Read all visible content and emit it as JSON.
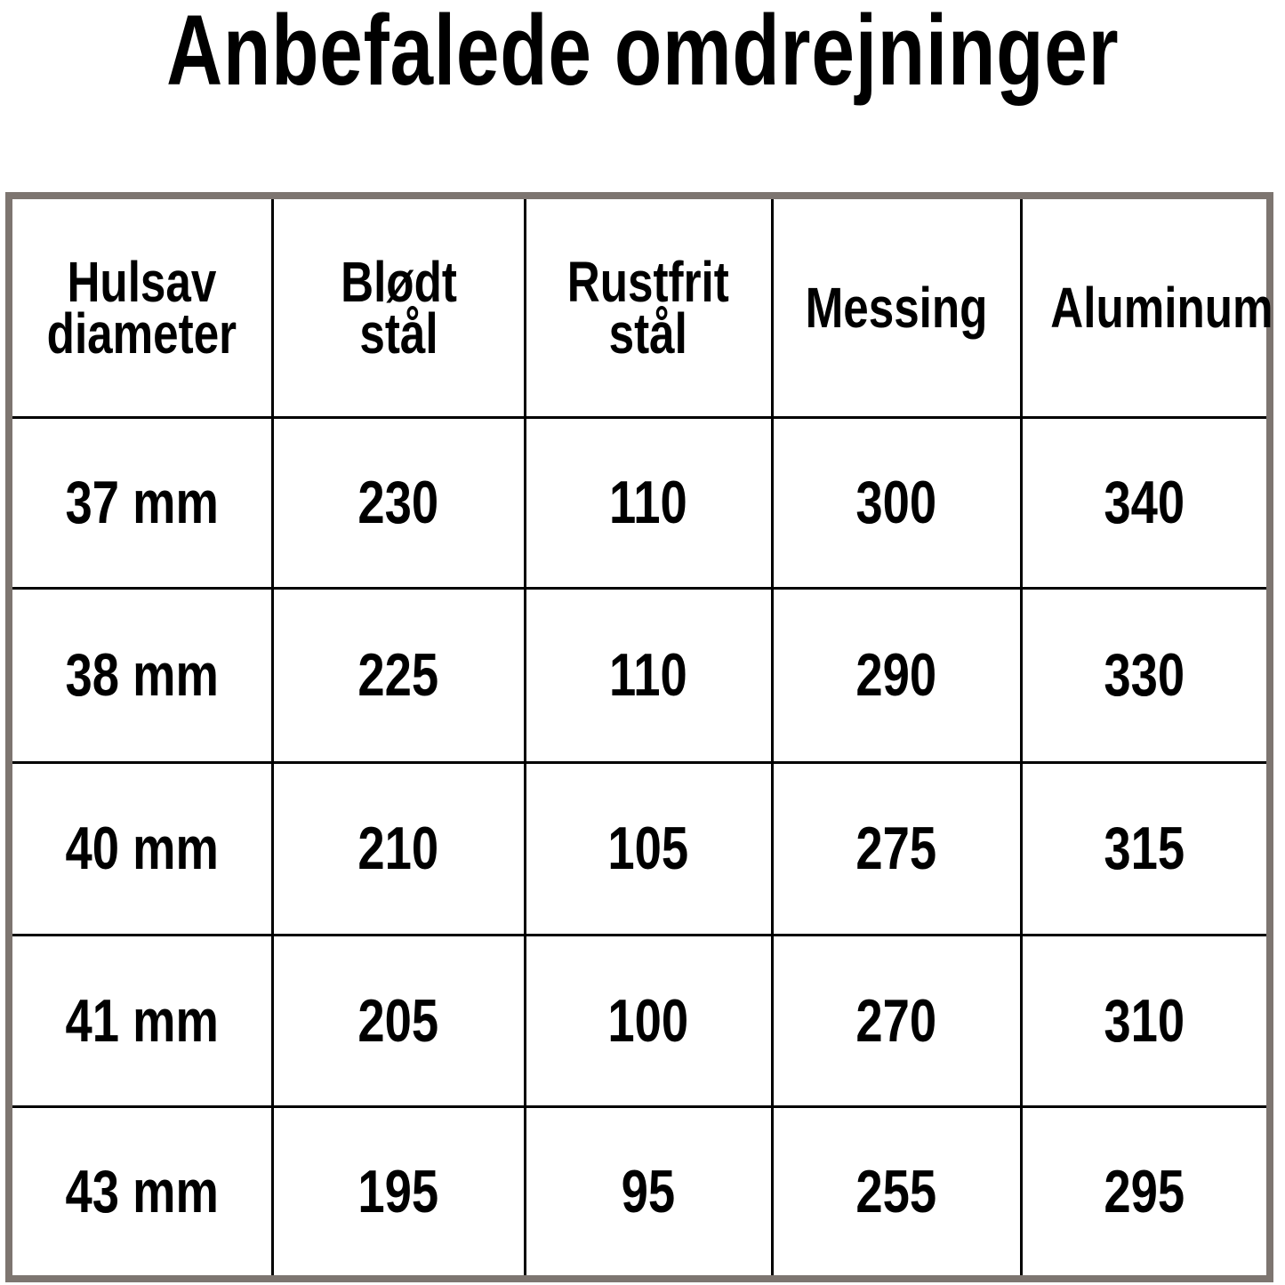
{
  "title": "Anbefalede omdrejninger",
  "table": {
    "headers": [
      "Hulsav\ndiameter",
      "Blødt stål",
      "Rustfrit\nstål",
      "Messing",
      "Aluminum"
    ],
    "rows": [
      [
        "37 mm",
        "230",
        "110",
        "300",
        "340"
      ],
      [
        "38 mm",
        "225",
        "110",
        "290",
        "330"
      ],
      [
        "40 mm",
        "210",
        "105",
        "275",
        "315"
      ],
      [
        "41 mm",
        "205",
        "100",
        "270",
        "310"
      ],
      [
        "43 mm",
        "195",
        "95",
        "255",
        "295"
      ]
    ]
  },
  "colors": {
    "outer_border": "#7d7570",
    "grid": "#000000"
  }
}
